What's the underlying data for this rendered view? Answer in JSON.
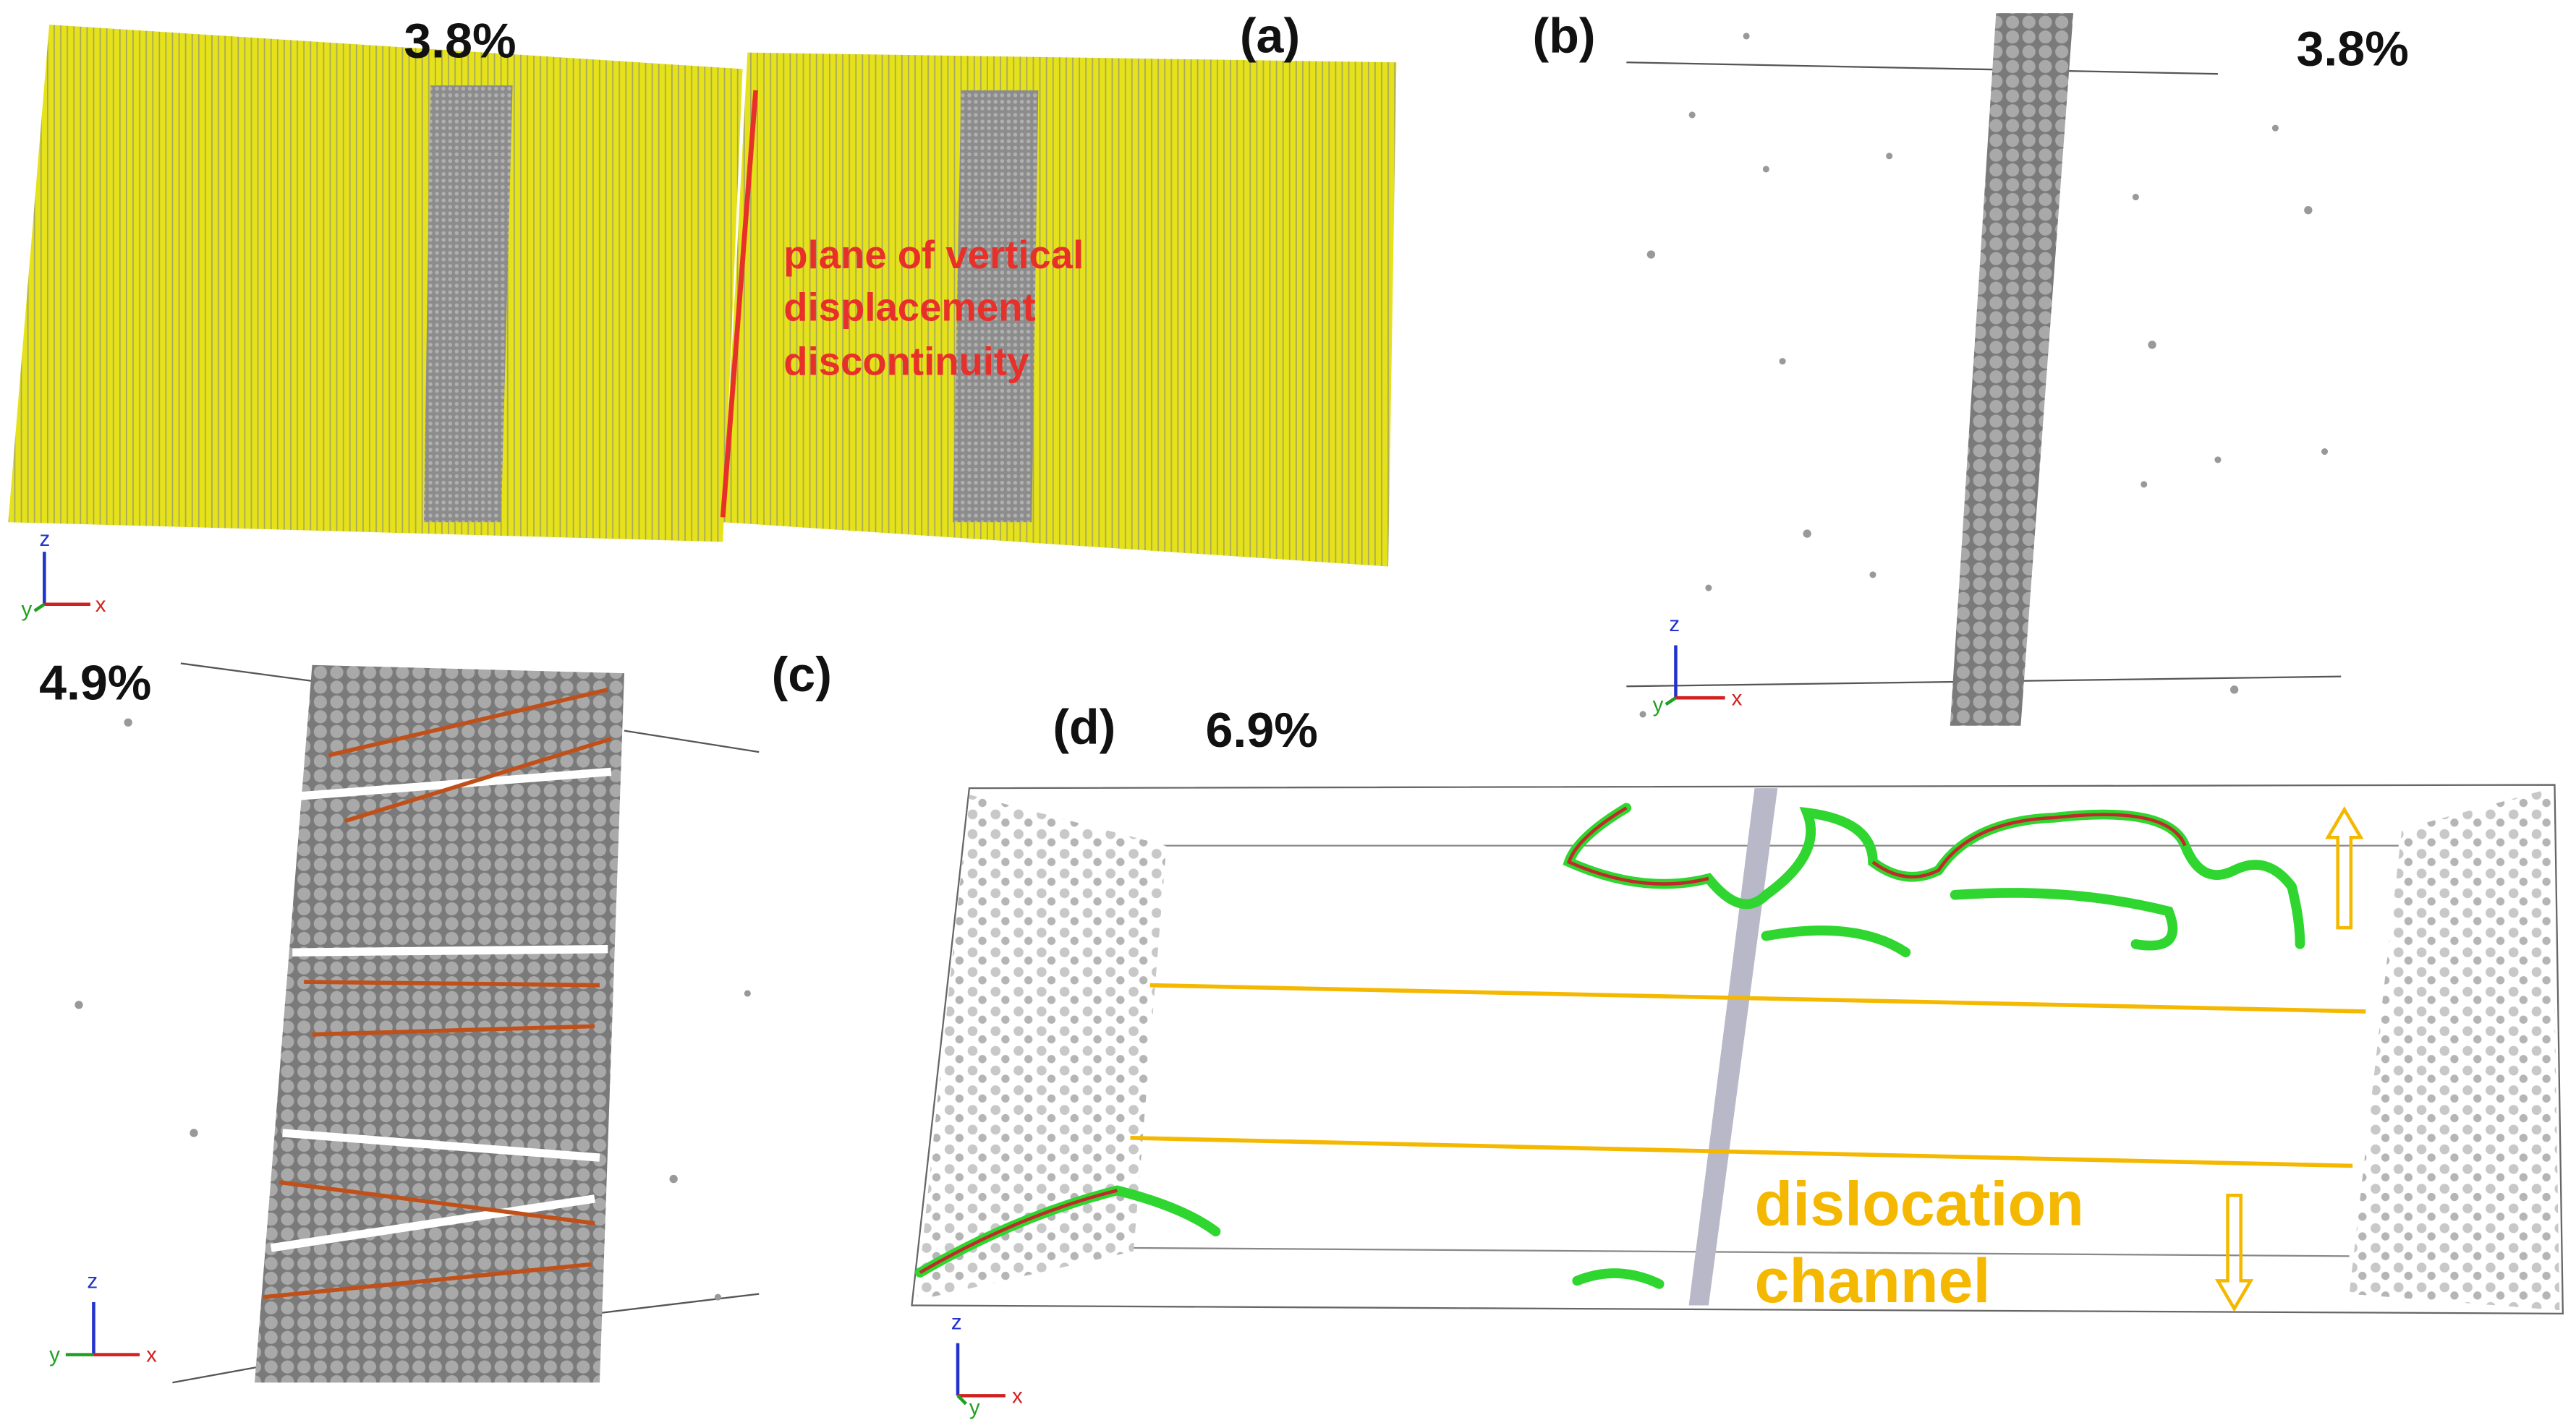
{
  "panels": [
    {
      "label": "(a)",
      "strain": "3.8%",
      "annotation": [
        "plane of vertical",
        "displacement",
        "discontinuity"
      ],
      "axes": [
        "z",
        "y",
        "x"
      ]
    },
    {
      "label": "(b)",
      "strain": "3.8%",
      "axes": [
        "z",
        "y",
        "x"
      ]
    },
    {
      "label": "(c)",
      "strain": "4.9%",
      "axes": [
        "z",
        "y",
        "x"
      ]
    },
    {
      "label": "(d)",
      "strain": "6.9%",
      "annotation": [
        "dislocation",
        "channel"
      ],
      "axes": [
        "z",
        "y",
        "x"
      ]
    }
  ]
}
